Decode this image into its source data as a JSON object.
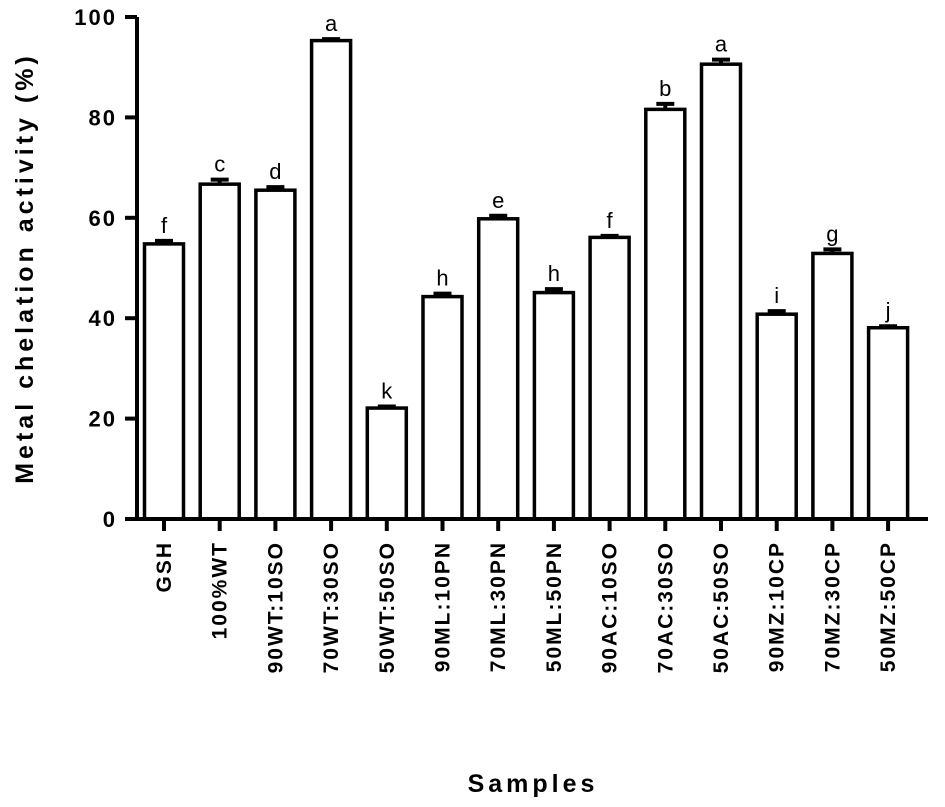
{
  "chart_data": {
    "type": "bar",
    "title": "",
    "xlabel": "Samples",
    "ylabel": "Metal chelation activity (%)",
    "ylim": [
      0,
      100
    ],
    "yticks": [
      0,
      20,
      40,
      60,
      80,
      100
    ],
    "grid": false,
    "categories": [
      "GSH",
      "100%WT",
      "90WT:10SO",
      "70WT:30SO",
      "50WT:50SO",
      "90ML:10PN",
      "70ML:30PN",
      "50ML:50PN",
      "90AC:10SO",
      "70AC:30SO",
      "50AC:50SO",
      "90MZ:10CP",
      "70MZ:30CP",
      "50MZ:50CP"
    ],
    "values": [
      54.8,
      66.7,
      65.5,
      95.3,
      22.1,
      44.3,
      59.8,
      45.1,
      56.1,
      81.6,
      90.6,
      40.8,
      52.9,
      38.1
    ],
    "errors": [
      0.6,
      0.9,
      0.6,
      0.3,
      0.3,
      0.6,
      0.6,
      0.7,
      0.3,
      1.1,
      0.9,
      0.6,
      0.8,
      0.3
    ],
    "significance_letters": [
      "f",
      "c",
      "d",
      "a",
      "k",
      "h",
      "e",
      "h",
      "f",
      "b",
      "a",
      "i",
      "g",
      "j"
    ],
    "bar_color": "#ffffff",
    "edge_color": "#000000"
  }
}
